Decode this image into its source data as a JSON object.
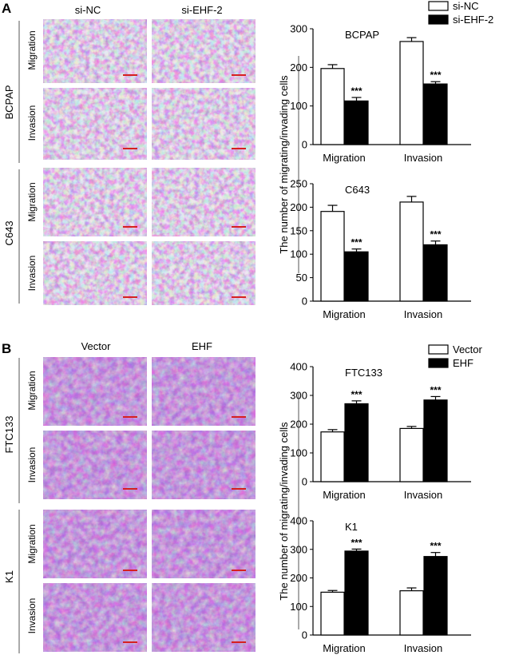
{
  "panels": [
    {
      "letter": "A",
      "conditions": [
        "si-NC",
        "si-EHF-2"
      ],
      "row_types": [
        "Migration",
        "Invasion"
      ],
      "cell_lines": [
        "BCPAP",
        "C643"
      ],
      "micrograph_style": "sparse"
    },
    {
      "letter": "B",
      "conditions": [
        "Vector",
        "EHF"
      ],
      "row_types": [
        "Migration",
        "Invasion"
      ],
      "cell_lines": [
        "FTC133",
        "K1"
      ],
      "micrograph_style": "dense"
    }
  ],
  "significance": "***",
  "colors": {
    "stain_light": "#ddd6e4",
    "stain_dark": "#6a2e9a",
    "scale_bar": "#d62020",
    "bar_open": "#ffffff",
    "bar_filled": "#000000"
  },
  "shared_ylabel": "The number of migrating/invading cells",
  "chart_data": [
    {
      "type": "bar",
      "panel": "A",
      "title": "BCPAP",
      "categories": [
        "Migration",
        "Invasion"
      ],
      "ylim": [
        0,
        300
      ],
      "yticks": [
        0,
        100,
        200,
        300
      ],
      "legend": "top-right",
      "series": [
        {
          "name": "si-NC",
          "values": [
            197,
            267
          ],
          "errors": [
            10,
            10
          ],
          "fill": "open"
        },
        {
          "name": "si-EHF-2",
          "values": [
            113,
            157
          ],
          "errors": [
            9,
            6
          ],
          "fill": "filled",
          "annotations": [
            "***",
            "***"
          ]
        }
      ]
    },
    {
      "type": "bar",
      "panel": "A",
      "title": "C643",
      "categories": [
        "Migration",
        "Invasion"
      ],
      "ylim": [
        0,
        250
      ],
      "yticks": [
        0,
        50,
        100,
        150,
        200,
        250
      ],
      "series": [
        {
          "values": [
            191,
            211
          ],
          "errors": [
            13,
            12
          ],
          "fill": "open"
        },
        {
          "values": [
            105,
            120
          ],
          "errors": [
            6,
            8
          ],
          "fill": "filled",
          "annotations": [
            "***",
            "***"
          ]
        }
      ]
    },
    {
      "type": "bar",
      "panel": "B",
      "title": "FTC133",
      "categories": [
        "Migration",
        "Invasion"
      ],
      "ylim": [
        0,
        400
      ],
      "yticks": [
        0,
        100,
        200,
        300,
        400
      ],
      "legend": "top-right",
      "series": [
        {
          "name": "Vector",
          "values": [
            173,
            185
          ],
          "errors": [
            8,
            7
          ],
          "fill": "open"
        },
        {
          "name": "EHF",
          "values": [
            271,
            284
          ],
          "errors": [
            10,
            12
          ],
          "fill": "filled",
          "annotations": [
            "***",
            "***"
          ]
        }
      ]
    },
    {
      "type": "bar",
      "panel": "B",
      "title": "K1",
      "categories": [
        "Migration",
        "Invasion"
      ],
      "ylim": [
        0,
        400
      ],
      "yticks": [
        0,
        100,
        200,
        300,
        400
      ],
      "series": [
        {
          "values": [
            150,
            155
          ],
          "errors": [
            6,
            10
          ],
          "fill": "open"
        },
        {
          "values": [
            294,
            275
          ],
          "errors": [
            7,
            14
          ],
          "fill": "filled",
          "annotations": [
            "***",
            "***"
          ]
        }
      ]
    }
  ]
}
